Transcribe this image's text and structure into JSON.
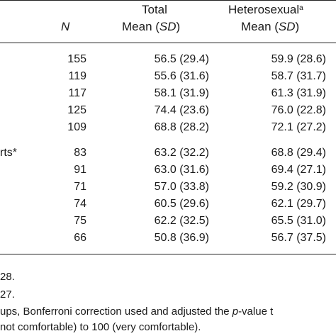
{
  "header": {
    "n_label": "N",
    "total_title": "Total",
    "total_sub_mean": "Mean",
    "total_sub_sd": "SD",
    "het_title": "Heterosexual",
    "het_sup": "a",
    "het_sub_mean": "Mean",
    "het_sub_sd": "SD"
  },
  "left_fragment": "rts*",
  "rows": [
    {
      "n": "155",
      "total": "56.5 (29.4)",
      "het": "59.9 (28.6)"
    },
    {
      "n": "119",
      "total": "55.6 (31.6)",
      "het": "58.7 (31.7)"
    },
    {
      "n": "117",
      "total": "58.1 (31.9)",
      "het": "61.3 (31.9)"
    },
    {
      "n": "125",
      "total": "74.4 (23.6)",
      "het": "76.0 (22.8)"
    },
    {
      "n": "109",
      "total": "68.8 (28.2)",
      "het": "72.1 (27.2)"
    },
    {
      "n": "83",
      "total": "63.2 (32.2)",
      "het": "68.8 (29.4)"
    },
    {
      "n": "91",
      "total": "63.0 (31.6)",
      "het": "69.4 (27.1)"
    },
    {
      "n": "71",
      "total": "57.0 (33.8)",
      "het": "59.2 (30.9)"
    },
    {
      "n": "74",
      "total": "60.5 (29.6)",
      "het": "62.1 (29.7)"
    },
    {
      "n": "75",
      "total": "62.2 (32.5)",
      "het": "65.5 (31.0)"
    },
    {
      "n": "66",
      "total": "50.8 (36.9)",
      "het": "56.7 (37.5)"
    }
  ],
  "footnotes": [
    "28.",
    "27.",
    "ups, Bonferroni correction used and adjusted the ",
    "not comfortable) to 100 (very comfortable)."
  ],
  "footnote_p": "p",
  "footnote_tail": "-value t"
}
